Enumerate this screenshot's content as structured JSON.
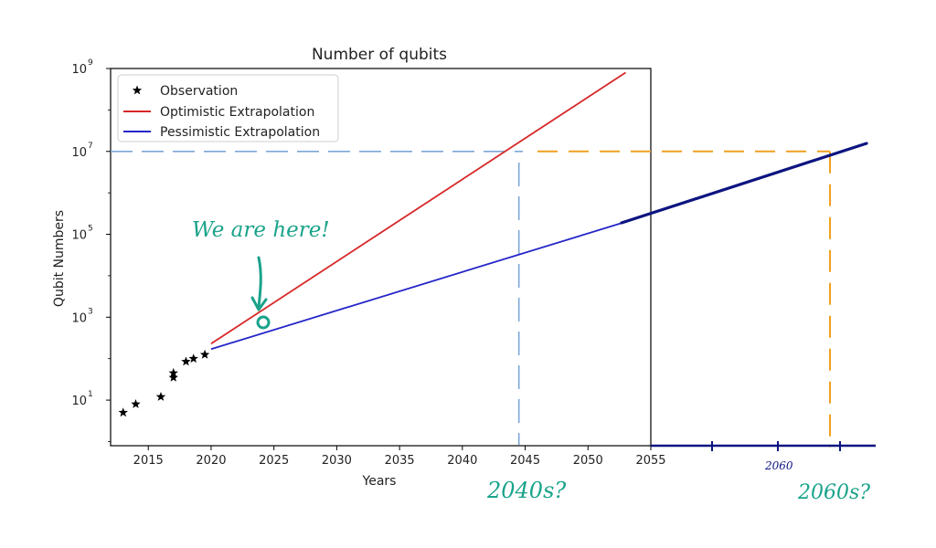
{
  "chart_data": {
    "type": "line",
    "title": "Number of qubits",
    "xlabel": "Years",
    "ylabel": "Qubit Numbers",
    "yscale": "log",
    "xlim": [
      2012,
      2055
    ],
    "ylim_log10": [
      -0.1,
      9
    ],
    "xticks": [
      2015,
      2020,
      2025,
      2030,
      2035,
      2040,
      2045,
      2050,
      2055
    ],
    "yticks": [
      {
        "exp": 1,
        "base": "10",
        "sup": "1"
      },
      {
        "exp": 3,
        "base": "10",
        "sup": "3"
      },
      {
        "exp": 5,
        "base": "10",
        "sup": "5"
      },
      {
        "exp": 7,
        "base": "10",
        "sup": "7"
      },
      {
        "exp": 9,
        "base": "10",
        "sup": "9"
      }
    ],
    "legend_position": "top-left",
    "series": [
      {
        "name": "Observation",
        "kind": "scatter",
        "color": "#000000",
        "marker": "star",
        "points": [
          [
            2013,
            5
          ],
          [
            2014,
            8
          ],
          [
            2016,
            12
          ],
          [
            2017,
            35
          ],
          [
            2017,
            45
          ],
          [
            2018,
            85
          ],
          [
            2018.6,
            100
          ],
          [
            2019.5,
            125
          ]
        ]
      },
      {
        "name": "Optimistic Extrapolation",
        "kind": "line",
        "color": "#d62728",
        "points": [
          [
            2020,
            230
          ],
          [
            2053,
            800000000
          ]
        ]
      },
      {
        "name": "Pessimistic Extrapolation",
        "kind": "line",
        "color": "#2525c8",
        "points": [
          [
            2020,
            170
          ],
          [
            2053,
            200000
          ]
        ]
      }
    ],
    "reference_lines": [
      {
        "kind": "horizontal",
        "y": 10000000,
        "color": "#7ea7d8",
        "style": "dashed"
      },
      {
        "kind": "vertical",
        "x": 2044.5,
        "color": "#7ea7d8",
        "style": "dashed"
      }
    ]
  },
  "annotations": {
    "we_are_here": "We are here!",
    "label_2040s": "2040s?",
    "label_2060s": "2060s?",
    "label_2060": "2060",
    "colors": {
      "annotation": "#1aa38a",
      "extension": "#0d1480",
      "orange_dash": "#f0a020"
    }
  }
}
